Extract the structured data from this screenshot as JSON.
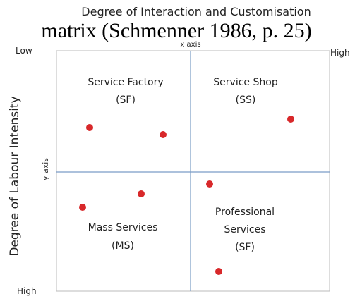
{
  "title": "Degree of Interaction and Customisation",
  "caption": "matrix (Schmenner 1986, p. 25)",
  "x_axis": {
    "name": "x axis",
    "low": "Low",
    "high": "High"
  },
  "y_axis": {
    "label": "Degree of Labour Intensity",
    "name": "y axis",
    "high": "High"
  },
  "quadrants": [
    {
      "lines": [
        "Service Factory",
        "(SF)"
      ]
    },
    {
      "lines": [
        "Service Shop",
        "(SS)"
      ]
    },
    {
      "lines": [
        "Mass Services",
        "(MS)"
      ]
    },
    {
      "lines": [
        "Professional",
        "Services",
        "(SF)"
      ]
    }
  ]
}
